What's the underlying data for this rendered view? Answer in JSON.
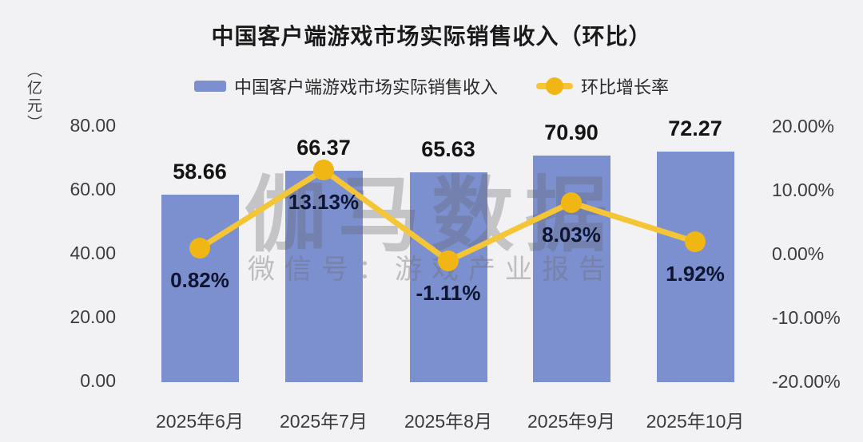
{
  "title": "中国客户端游戏市场实际销售收入（环比）",
  "unit_label": "（亿元）",
  "legend": {
    "bar_label": "中国客户端游戏市场实际销售收入",
    "line_label": "环比增长率"
  },
  "watermark": {
    "brand": "伽马数据",
    "subtitle": "微信号：游戏产业报告"
  },
  "colors": {
    "background": "#F2F2F4",
    "bar": "#7C90CF",
    "line": "#F4C537",
    "marker": "#F0B614",
    "value_label": "#141414",
    "pct_label": "#0F1530",
    "axis_text": "#3C3C3C",
    "watermark": "#8F8F94"
  },
  "chart_data": {
    "type": "bar+line combo",
    "title": "中国客户端游戏市场实际销售收入（环比）",
    "categories": [
      "2025年6月",
      "2025年7月",
      "2025年8月",
      "2025年9月",
      "2025年10月"
    ],
    "series": [
      {
        "name": "中国客户端游戏市场实际销售收入",
        "type": "bar",
        "axis": "left",
        "unit": "亿元",
        "values": [
          58.66,
          66.37,
          65.63,
          70.9,
          72.27
        ]
      },
      {
        "name": "环比增长率",
        "type": "line",
        "axis": "right",
        "unit": "%",
        "values": [
          0.82,
          13.13,
          -1.11,
          8.03,
          1.92
        ]
      }
    ],
    "bar_value_labels": [
      "58.66",
      "66.37",
      "65.63",
      "70.90",
      "72.27"
    ],
    "pct_value_labels": [
      "0.82%",
      "13.13%",
      "-1.11%",
      "8.03%",
      "1.92%"
    ],
    "left_axis": {
      "ticks": [
        "80.00",
        "60.00",
        "40.00",
        "20.00",
        "0.00"
      ],
      "min": 0,
      "max": 80
    },
    "right_axis": {
      "ticks": [
        "20.00%",
        "10.00%",
        "0.00%",
        "-10.00%",
        "-20.00%"
      ],
      "min": -20,
      "max": 20
    },
    "grid": false,
    "legend_position": "top"
  }
}
